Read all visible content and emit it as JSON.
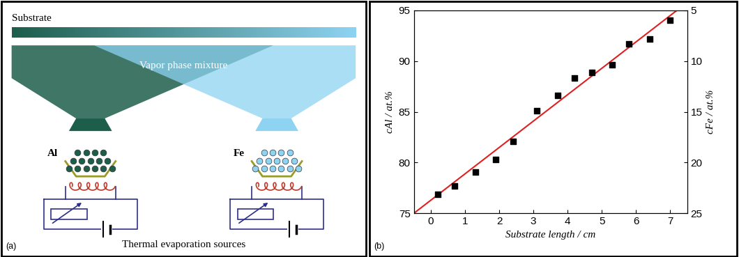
{
  "panels": {
    "a": {
      "label": "(a)",
      "substrate": "Substrate",
      "vapor": "Vapor phase mixture",
      "sources": [
        {
          "label": "Al"
        },
        {
          "label": "Fe"
        }
      ],
      "caption": "Thermal evaporation sources"
    },
    "b": {
      "label": "(b)"
    }
  },
  "chart_data": {
    "type": "scatter",
    "x_label": "Substrate length / cm",
    "y_label": "cAl / at.%",
    "y2_label": "cFe / at.%",
    "xlim": [
      -0.5,
      7.5
    ],
    "xticks": [
      0,
      1,
      2,
      3,
      4,
      5,
      6,
      7
    ],
    "ylim": [
      75,
      95
    ],
    "yticks": [
      75,
      80,
      85,
      90,
      95
    ],
    "y2lim": [
      25,
      5
    ],
    "y2ticks": [
      5,
      10,
      15,
      20,
      25
    ],
    "series": [
      {
        "type": "scatter",
        "color": "#000000",
        "marker": "square",
        "x": [
          0.2,
          0.7,
          1.3,
          1.9,
          2.4,
          3.1,
          3.7,
          4.2,
          4.7,
          5.3,
          5.8,
          6.4,
          7.0
        ],
        "values": [
          76.9,
          77.7,
          79.1,
          80.3,
          82.1,
          85.1,
          86.6,
          88.3,
          88.9,
          89.6,
          91.7,
          92.2,
          94.0
        ]
      },
      {
        "type": "line",
        "color": "#e02020",
        "line_style": "solid",
        "x": [
          -0.5,
          7.2
        ],
        "values": [
          75,
          95
        ]
      }
    ]
  }
}
